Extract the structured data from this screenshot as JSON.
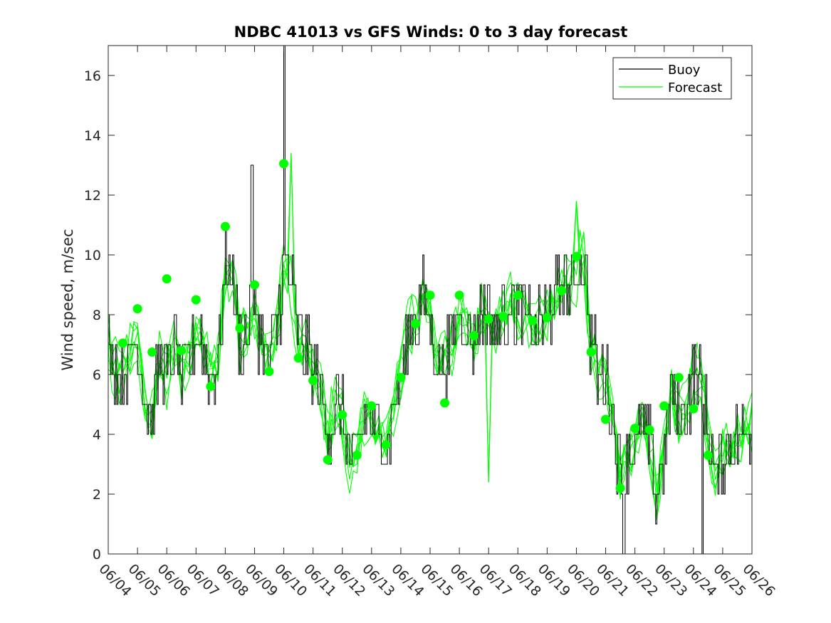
{
  "chart_data": {
    "type": "line",
    "title": "NDBC 41013 vs GFS Winds: 0 to 3 day forecast",
    "xlabel": "",
    "ylabel": "Wind speed, m/sec",
    "ylim": [
      0,
      17
    ],
    "yticks": [
      0,
      2,
      4,
      6,
      8,
      10,
      12,
      14,
      16
    ],
    "x_tick_labels": [
      "06/04",
      "06/05",
      "06/06",
      "06/07",
      "06/08",
      "06/09",
      "06/10",
      "06/11",
      "06/12",
      "06/13",
      "06/14",
      "06/15",
      "06/16",
      "06/17",
      "06/18",
      "06/19",
      "06/20",
      "06/21",
      "06/22",
      "06/23",
      "06/24",
      "06/25",
      "06/26"
    ],
    "xlim_days": [
      0,
      22
    ],
    "legend": {
      "location": "top-right",
      "entries": [
        "Buoy",
        "Forecast"
      ]
    },
    "colors": {
      "buoy": "#000000",
      "forecast": "#00ff00",
      "axes": "#262626"
    },
    "buoy_anchors": [
      [
        0.0,
        7.0
      ],
      [
        0.25,
        6.2
      ],
      [
        0.5,
        6.0
      ],
      [
        0.75,
        6.8
      ],
      [
        1.0,
        7.0
      ],
      [
        1.25,
        5.0
      ],
      [
        1.5,
        4.5
      ],
      [
        1.75,
        6.5
      ],
      [
        2.0,
        6.0
      ],
      [
        2.25,
        7.0
      ],
      [
        2.5,
        6.0
      ],
      [
        2.75,
        6.5
      ],
      [
        3.0,
        7.5
      ],
      [
        3.25,
        7.0
      ],
      [
        3.5,
        6.0
      ],
      [
        3.75,
        6.5
      ],
      [
        4.0,
        9.5
      ],
      [
        4.25,
        9.5
      ],
      [
        4.5,
        7.0
      ],
      [
        4.75,
        7.5
      ],
      [
        5.0,
        8.0
      ],
      [
        5.25,
        7.0
      ],
      [
        5.5,
        6.5
      ],
      [
        5.75,
        7.5
      ],
      [
        6.0,
        9.5
      ],
      [
        6.25,
        9.0
      ],
      [
        6.5,
        7.0
      ],
      [
        6.75,
        7.0
      ],
      [
        7.0,
        6.0
      ],
      [
        7.25,
        5.5
      ],
      [
        7.5,
        4.0
      ],
      [
        7.75,
        5.0
      ],
      [
        8.0,
        4.5
      ],
      [
        8.25,
        3.0
      ],
      [
        8.5,
        3.5
      ],
      [
        8.75,
        4.5
      ],
      [
        9.0,
        4.5
      ],
      [
        9.25,
        4.0
      ],
      [
        9.5,
        3.5
      ],
      [
        9.75,
        5.0
      ],
      [
        10.0,
        6.0
      ],
      [
        10.25,
        7.5
      ],
      [
        10.5,
        8.0
      ],
      [
        10.75,
        8.5
      ],
      [
        11.0,
        8.0
      ],
      [
        11.25,
        6.5
      ],
      [
        11.5,
        6.5
      ],
      [
        11.75,
        7.0
      ],
      [
        12.0,
        8.0
      ],
      [
        12.25,
        7.5
      ],
      [
        12.5,
        7.0
      ],
      [
        12.75,
        8.0
      ],
      [
        13.0,
        8.0
      ],
      [
        13.25,
        7.5
      ],
      [
        13.5,
        8.0
      ],
      [
        13.75,
        8.5
      ],
      [
        14.0,
        8.0
      ],
      [
        14.25,
        8.0
      ],
      [
        14.5,
        7.5
      ],
      [
        14.75,
        7.5
      ],
      [
        15.0,
        8.0
      ],
      [
        15.25,
        8.5
      ],
      [
        15.5,
        9.0
      ],
      [
        15.75,
        9.0
      ],
      [
        16.0,
        9.5
      ],
      [
        16.25,
        10.0
      ],
      [
        16.5,
        7.0
      ],
      [
        16.75,
        6.0
      ],
      [
        17.0,
        6.0
      ],
      [
        17.25,
        4.5
      ],
      [
        17.5,
        2.5
      ],
      [
        17.75,
        3.5
      ],
      [
        18.0,
        3.5
      ],
      [
        18.25,
        4.5
      ],
      [
        18.5,
        3.5
      ],
      [
        18.75,
        2.0
      ],
      [
        19.0,
        3.5
      ],
      [
        19.25,
        5.5
      ],
      [
        19.5,
        4.5
      ],
      [
        19.75,
        5.0
      ],
      [
        20.0,
        6.0
      ],
      [
        20.25,
        6.0
      ],
      [
        20.5,
        4.0
      ],
      [
        20.75,
        2.5
      ],
      [
        21.0,
        3.5
      ],
      [
        21.25,
        3.5
      ],
      [
        21.5,
        4.0
      ],
      [
        21.75,
        4.0
      ],
      [
        22.0,
        4.5
      ]
    ],
    "forecast_markers": [
      [
        0.5,
        7.05
      ],
      [
        1.0,
        8.2
      ],
      [
        1.5,
        6.75
      ],
      [
        2.0,
        9.2
      ],
      [
        2.5,
        6.8
      ],
      [
        3.0,
        8.5
      ],
      [
        3.5,
        5.6
      ],
      [
        4.0,
        10.95
      ],
      [
        4.5,
        7.55
      ],
      [
        5.0,
        9.0
      ],
      [
        5.5,
        6.1
      ],
      [
        6.0,
        13.05
      ],
      [
        6.5,
        6.55
      ],
      [
        7.0,
        5.8
      ],
      [
        7.5,
        3.15
      ],
      [
        8.0,
        4.65
      ],
      [
        8.5,
        3.3
      ],
      [
        9.0,
        4.95
      ],
      [
        9.5,
        3.65
      ],
      [
        10.0,
        5.9
      ],
      [
        10.5,
        7.7
      ],
      [
        11.0,
        8.65
      ],
      [
        11.5,
        5.05
      ],
      [
        12.0,
        8.65
      ],
      [
        12.5,
        7.3
      ],
      [
        13.0,
        7.85
      ],
      [
        13.5,
        7.95
      ],
      [
        14.0,
        8.65
      ],
      [
        14.5,
        7.8
      ],
      [
        15.0,
        7.9
      ],
      [
        15.5,
        8.8
      ],
      [
        16.0,
        9.95
      ],
      [
        16.5,
        6.75
      ],
      [
        17.0,
        4.5
      ],
      [
        17.5,
        2.2
      ],
      [
        18.0,
        4.2
      ],
      [
        18.5,
        4.15
      ],
      [
        19.0,
        4.95
      ],
      [
        19.5,
        5.9
      ],
      [
        20.0,
        4.85
      ],
      [
        20.5,
        3.3
      ]
    ],
    "forecast_spikes": [
      [
        6.2,
        13.4
      ],
      [
        13.0,
        2.4
      ],
      [
        16.0,
        11.8
      ]
    ],
    "buoy_spikes": [
      [
        6.0,
        17.0
      ],
      [
        4.9,
        13.0
      ],
      [
        17.6,
        0.0
      ],
      [
        20.3,
        0.0
      ],
      [
        18.7,
        1.0
      ]
    ]
  }
}
